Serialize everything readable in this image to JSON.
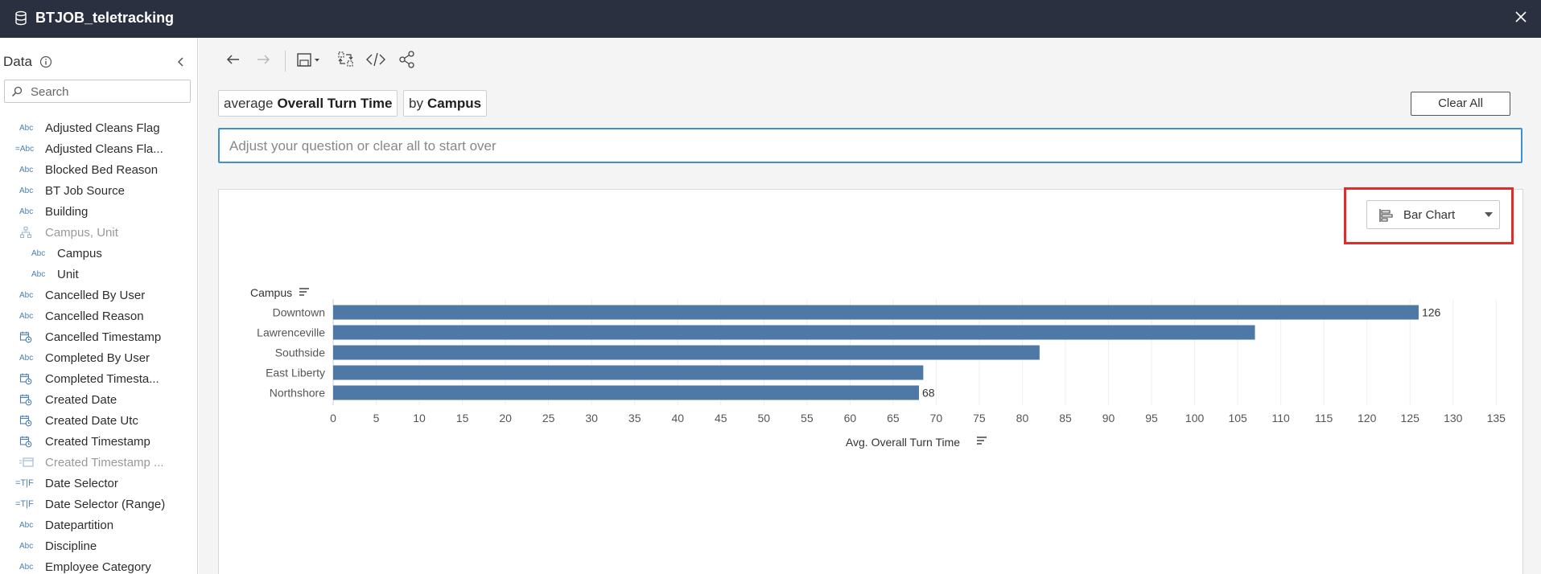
{
  "window": {
    "title": "BTJOB_teletracking"
  },
  "sidebar": {
    "header": "Data",
    "search_placeholder": "Search",
    "fields": [
      {
        "icon": "Abc",
        "label": "Adjusted Cleans Flag"
      },
      {
        "icon": "=Abc",
        "label": "Adjusted Cleans Fla..."
      },
      {
        "icon": "Abc",
        "label": "Blocked Bed Reason"
      },
      {
        "icon": "Abc",
        "label": "BT Job Source"
      },
      {
        "icon": "Abc",
        "label": "Building"
      },
      {
        "icon": "hierarchy",
        "label": "Campus, Unit",
        "muted": true
      },
      {
        "icon": "Abc",
        "label": "Campus",
        "indent": true
      },
      {
        "icon": "Abc",
        "label": "Unit",
        "indent": true
      },
      {
        "icon": "Abc",
        "label": "Cancelled By User"
      },
      {
        "icon": "Abc",
        "label": "Cancelled Reason"
      },
      {
        "icon": "datetime",
        "label": "Cancelled Timestamp"
      },
      {
        "icon": "Abc",
        "label": "Completed By User"
      },
      {
        "icon": "datetime",
        "label": "Completed Timesta..."
      },
      {
        "icon": "datetime",
        "label": "Created Date"
      },
      {
        "icon": "datetime",
        "label": "Created Date Utc"
      },
      {
        "icon": "datetime",
        "label": "Created Timestamp"
      },
      {
        "icon": "calc-date",
        "label": "Created Timestamp ...",
        "muted": true
      },
      {
        "icon": "=T|F",
        "label": "Date Selector"
      },
      {
        "icon": "=T|F",
        "label": "Date Selector (Range)"
      },
      {
        "icon": "Abc",
        "label": "Datepartition"
      },
      {
        "icon": "Abc",
        "label": "Discipline"
      },
      {
        "icon": "Abc",
        "label": "Employee Category"
      }
    ]
  },
  "toolbar": {
    "icons": [
      "back-arrow-icon",
      "forward-arrow-icon",
      "save-icon",
      "swap-icon",
      "embed-code-icon",
      "share-icon"
    ]
  },
  "query": {
    "pills": [
      {
        "prefix": "average",
        "field": "Overall Turn Time"
      },
      {
        "prefix": "by",
        "field": "Campus"
      }
    ],
    "clear_label": "Clear All",
    "placeholder": "Adjust your question or clear all to start over"
  },
  "chart_type": {
    "label": "Bar Chart",
    "icon": "bar-chart-icon",
    "highlight_color": "#e22b2b"
  },
  "chart_data": {
    "type": "bar",
    "orientation": "horizontal",
    "row_header": "Campus",
    "xlabel": "Avg. Overall Turn Time",
    "categories": [
      "Downtown",
      "Lawrenceville",
      "Southside",
      "East Liberty",
      "Northshore"
    ],
    "values": [
      126,
      107,
      82,
      68.5,
      68
    ],
    "data_labels": [
      "126",
      "",
      "",
      "",
      "68"
    ],
    "bar_color": "#4e79a7",
    "xlim": [
      0,
      136
    ],
    "xticks": [
      "0",
      "5",
      "10",
      "15",
      "20",
      "25",
      "30",
      "35",
      "40",
      "45",
      "50",
      "55",
      "60",
      "65",
      "70",
      "75",
      "80",
      "85",
      "90",
      "95",
      "100",
      "105",
      "110",
      "115",
      "120",
      "125",
      "130",
      "135"
    ],
    "grid": true
  }
}
